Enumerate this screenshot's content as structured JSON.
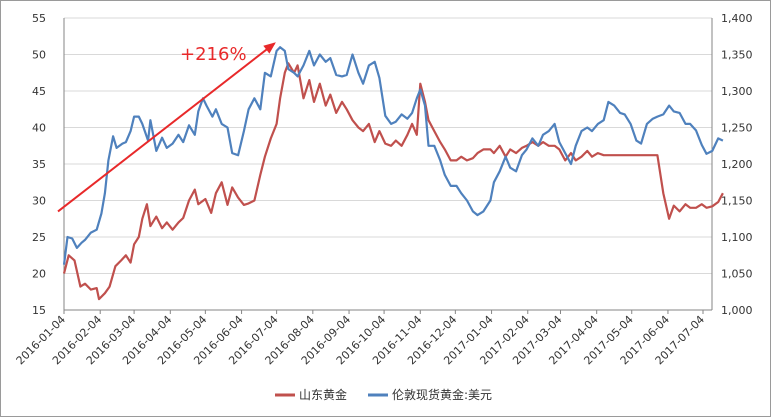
{
  "chart_data": {
    "type": "line",
    "annotation": "+216%",
    "x_tick_labels": [
      "2016-01-04",
      "2016-02-04",
      "2016-03-04",
      "2016-04-04",
      "2016-05-04",
      "2016-06-04",
      "2016-07-04",
      "2016-08-04",
      "2016-09-04",
      "2016-10-04",
      "2016-11-04",
      "2016-12-04",
      "2017-01-04",
      "2017-02-04",
      "2017-03-04",
      "2017-04-04",
      "2017-05-04",
      "2017-06-04",
      "2017-07-04"
    ],
    "y_left": {
      "ticks": [
        "15",
        "20",
        "25",
        "30",
        "35",
        "40",
        "45",
        "50",
        "55"
      ],
      "range": [
        15,
        55
      ]
    },
    "y_right": {
      "ticks": [
        "1,000",
        "1,050",
        "1,100",
        "1,150",
        "1,200",
        "1,250",
        "1,300",
        "1,350",
        "1,400"
      ],
      "range": [
        1000,
        1400
      ]
    },
    "gridlines": true,
    "legend_position": "bottom",
    "series": [
      {
        "name": "山东黄金",
        "axis": "left",
        "color": "#c0504d",
        "points": [
          [
            "2016-01-04",
            20.0
          ],
          [
            "2016-01-08",
            22.5
          ],
          [
            "2016-01-13",
            21.8
          ],
          [
            "2016-01-18",
            18.2
          ],
          [
            "2016-01-22",
            18.6
          ],
          [
            "2016-01-27",
            17.8
          ],
          [
            "2016-02-01",
            18.0
          ],
          [
            "2016-02-03",
            16.5
          ],
          [
            "2016-02-08",
            17.3
          ],
          [
            "2016-02-12",
            18.2
          ],
          [
            "2016-02-17",
            21.0
          ],
          [
            "2016-02-22",
            21.8
          ],
          [
            "2016-02-26",
            22.5
          ],
          [
            "2016-03-01",
            21.5
          ],
          [
            "2016-03-04",
            24.0
          ],
          [
            "2016-03-08",
            25.0
          ],
          [
            "2016-03-11",
            27.5
          ],
          [
            "2016-03-15",
            29.5
          ],
          [
            "2016-03-18",
            26.5
          ],
          [
            "2016-03-23",
            27.8
          ],
          [
            "2016-03-28",
            26.2
          ],
          [
            "2016-04-01",
            27.0
          ],
          [
            "2016-04-06",
            26.0
          ],
          [
            "2016-04-11",
            27.0
          ],
          [
            "2016-04-15",
            27.6
          ],
          [
            "2016-04-20",
            30.0
          ],
          [
            "2016-04-25",
            31.5
          ],
          [
            "2016-04-28",
            29.5
          ],
          [
            "2016-05-04",
            30.2
          ],
          [
            "2016-05-09",
            28.3
          ],
          [
            "2016-05-13",
            31.0
          ],
          [
            "2016-05-18",
            32.5
          ],
          [
            "2016-05-23",
            29.4
          ],
          [
            "2016-05-27",
            31.8
          ],
          [
            "2016-06-01",
            30.4
          ],
          [
            "2016-06-06",
            29.4
          ],
          [
            "2016-06-10",
            29.6
          ],
          [
            "2016-06-15",
            30.0
          ],
          [
            "2016-06-20",
            33.5
          ],
          [
            "2016-06-24",
            36.0
          ],
          [
            "2016-06-29",
            38.5
          ],
          [
            "2016-07-04",
            40.5
          ],
          [
            "2016-07-07",
            44.0
          ],
          [
            "2016-07-11",
            47.5
          ],
          [
            "2016-07-14",
            48.8
          ],
          [
            "2016-07-19",
            47.5
          ],
          [
            "2016-07-22",
            48.5
          ],
          [
            "2016-07-27",
            44.0
          ],
          [
            "2016-08-01",
            46.5
          ],
          [
            "2016-08-05",
            43.5
          ],
          [
            "2016-08-10",
            46.0
          ],
          [
            "2016-08-15",
            43.0
          ],
          [
            "2016-08-19",
            44.5
          ],
          [
            "2016-08-24",
            42.0
          ],
          [
            "2016-08-29",
            43.5
          ],
          [
            "2016-09-02",
            42.5
          ],
          [
            "2016-09-07",
            41.0
          ],
          [
            "2016-09-12",
            40.0
          ],
          [
            "2016-09-16",
            39.5
          ],
          [
            "2016-09-21",
            40.5
          ],
          [
            "2016-09-26",
            38.0
          ],
          [
            "2016-09-30",
            39.5
          ],
          [
            "2016-10-05",
            37.8
          ],
          [
            "2016-10-10",
            37.5
          ],
          [
            "2016-10-14",
            38.2
          ],
          [
            "2016-10-19",
            37.5
          ],
          [
            "2016-10-24",
            39.0
          ],
          [
            "2016-10-28",
            40.5
          ],
          [
            "2016-11-01",
            39.0
          ],
          [
            "2016-11-04",
            46.0
          ],
          [
            "2016-11-08",
            43.5
          ],
          [
            "2016-11-11",
            41.0
          ],
          [
            "2016-11-16",
            39.5
          ],
          [
            "2016-11-21",
            38.0
          ],
          [
            "2016-11-25",
            37.0
          ],
          [
            "2016-11-30",
            35.5
          ],
          [
            "2016-12-05",
            35.5
          ],
          [
            "2016-12-09",
            36.0
          ],
          [
            "2016-12-14",
            35.5
          ],
          [
            "2016-12-19",
            35.8
          ],
          [
            "2016-12-23",
            36.5
          ],
          [
            "2016-12-28",
            37.0
          ],
          [
            "2017-01-03",
            37.0
          ],
          [
            "2017-01-06",
            36.5
          ],
          [
            "2017-01-11",
            37.5
          ],
          [
            "2017-01-16",
            36.0
          ],
          [
            "2017-01-20",
            37.0
          ],
          [
            "2017-01-25",
            36.5
          ],
          [
            "2017-01-30",
            37.2
          ],
          [
            "2017-02-03",
            37.5
          ],
          [
            "2017-02-08",
            38.0
          ],
          [
            "2017-02-13",
            37.5
          ],
          [
            "2017-02-17",
            38.0
          ],
          [
            "2017-02-22",
            37.5
          ],
          [
            "2017-02-27",
            37.5
          ],
          [
            "2017-03-03",
            37.0
          ],
          [
            "2017-03-08",
            35.5
          ],
          [
            "2017-03-13",
            36.5
          ],
          [
            "2017-03-17",
            35.5
          ],
          [
            "2017-03-22",
            36.0
          ],
          [
            "2017-03-27",
            36.8
          ],
          [
            "2017-03-31",
            36.0
          ],
          [
            "2017-04-05",
            36.5
          ],
          [
            "2017-04-10",
            36.2
          ],
          [
            "2017-04-14",
            36.2
          ],
          [
            "2017-04-19",
            36.2
          ],
          [
            "2017-04-24",
            36.2
          ],
          [
            "2017-04-28",
            36.2
          ],
          [
            "2017-05-03",
            36.2
          ],
          [
            "2017-05-08",
            36.2
          ],
          [
            "2017-05-12",
            36.2
          ],
          [
            "2017-05-17",
            36.2
          ],
          [
            "2017-05-22",
            36.2
          ],
          [
            "2017-05-26",
            36.2
          ],
          [
            "2017-05-31",
            31.0
          ],
          [
            "2017-06-05",
            27.5
          ],
          [
            "2017-06-09",
            29.3
          ],
          [
            "2017-06-14",
            28.5
          ],
          [
            "2017-06-19",
            29.5
          ],
          [
            "2017-06-23",
            29.0
          ],
          [
            "2017-06-28",
            29.0
          ],
          [
            "2017-07-03",
            29.5
          ],
          [
            "2017-07-07",
            29.0
          ],
          [
            "2017-07-12",
            29.2
          ],
          [
            "2017-07-17",
            29.8
          ],
          [
            "2017-07-21",
            31.0
          ]
        ]
      },
      {
        "name": "伦敦现货黄金:美元",
        "axis": "right",
        "color": "#4f81bd",
        "points": [
          [
            "2016-01-04",
            1062
          ],
          [
            "2016-01-07",
            1100
          ],
          [
            "2016-01-11",
            1098
          ],
          [
            "2016-01-15",
            1085
          ],
          [
            "2016-01-19",
            1092
          ],
          [
            "2016-01-22",
            1096
          ],
          [
            "2016-01-27",
            1106
          ],
          [
            "2016-02-01",
            1110
          ],
          [
            "2016-02-05",
            1132
          ],
          [
            "2016-02-08",
            1160
          ],
          [
            "2016-02-11",
            1205
          ],
          [
            "2016-02-15",
            1238
          ],
          [
            "2016-02-18",
            1222
          ],
          [
            "2016-02-23",
            1228
          ],
          [
            "2016-02-26",
            1230
          ],
          [
            "2016-03-01",
            1245
          ],
          [
            "2016-03-04",
            1265
          ],
          [
            "2016-03-08",
            1265
          ],
          [
            "2016-03-11",
            1255
          ],
          [
            "2016-03-16",
            1232
          ],
          [
            "2016-03-18",
            1260
          ],
          [
            "2016-03-23",
            1218
          ],
          [
            "2016-03-28",
            1236
          ],
          [
            "2016-04-01",
            1222
          ],
          [
            "2016-04-06",
            1228
          ],
          [
            "2016-04-11",
            1240
          ],
          [
            "2016-04-15",
            1230
          ],
          [
            "2016-04-20",
            1253
          ],
          [
            "2016-04-25",
            1240
          ],
          [
            "2016-04-28",
            1272
          ],
          [
            "2016-05-02",
            1290
          ],
          [
            "2016-05-05",
            1280
          ],
          [
            "2016-05-10",
            1265
          ],
          [
            "2016-05-13",
            1275
          ],
          [
            "2016-05-18",
            1255
          ],
          [
            "2016-05-23",
            1250
          ],
          [
            "2016-05-27",
            1215
          ],
          [
            "2016-06-01",
            1212
          ],
          [
            "2016-06-06",
            1245
          ],
          [
            "2016-06-10",
            1275
          ],
          [
            "2016-06-15",
            1290
          ],
          [
            "2016-06-20",
            1275
          ],
          [
            "2016-06-24",
            1325
          ],
          [
            "2016-06-29",
            1320
          ],
          [
            "2016-07-04",
            1355
          ],
          [
            "2016-07-07",
            1360
          ],
          [
            "2016-07-11",
            1355
          ],
          [
            "2016-07-14",
            1330
          ],
          [
            "2016-07-19",
            1325
          ],
          [
            "2016-07-22",
            1320
          ],
          [
            "2016-07-27",
            1335
          ],
          [
            "2016-08-01",
            1355
          ],
          [
            "2016-08-05",
            1335
          ],
          [
            "2016-08-10",
            1350
          ],
          [
            "2016-08-15",
            1340
          ],
          [
            "2016-08-19",
            1345
          ],
          [
            "2016-08-24",
            1322
          ],
          [
            "2016-08-29",
            1320
          ],
          [
            "2016-09-02",
            1322
          ],
          [
            "2016-09-07",
            1350
          ],
          [
            "2016-09-12",
            1325
          ],
          [
            "2016-09-16",
            1310
          ],
          [
            "2016-09-21",
            1335
          ],
          [
            "2016-09-26",
            1340
          ],
          [
            "2016-09-30",
            1318
          ],
          [
            "2016-10-05",
            1266
          ],
          [
            "2016-10-10",
            1255
          ],
          [
            "2016-10-14",
            1258
          ],
          [
            "2016-10-19",
            1268
          ],
          [
            "2016-10-24",
            1262
          ],
          [
            "2016-10-28",
            1270
          ],
          [
            "2016-11-01",
            1290
          ],
          [
            "2016-11-04",
            1302
          ],
          [
            "2016-11-08",
            1280
          ],
          [
            "2016-11-11",
            1225
          ],
          [
            "2016-11-16",
            1225
          ],
          [
            "2016-11-21",
            1205
          ],
          [
            "2016-11-25",
            1185
          ],
          [
            "2016-11-30",
            1170
          ],
          [
            "2016-12-05",
            1170
          ],
          [
            "2016-12-09",
            1160
          ],
          [
            "2016-12-14",
            1150
          ],
          [
            "2016-12-19",
            1135
          ],
          [
            "2016-12-23",
            1130
          ],
          [
            "2016-12-28",
            1135
          ],
          [
            "2017-01-03",
            1150
          ],
          [
            "2017-01-06",
            1175
          ],
          [
            "2017-01-11",
            1190
          ],
          [
            "2017-01-16",
            1210
          ],
          [
            "2017-01-20",
            1195
          ],
          [
            "2017-01-25",
            1190
          ],
          [
            "2017-01-30",
            1212
          ],
          [
            "2017-02-03",
            1220
          ],
          [
            "2017-02-08",
            1235
          ],
          [
            "2017-02-13",
            1225
          ],
          [
            "2017-02-17",
            1240
          ],
          [
            "2017-02-22",
            1245
          ],
          [
            "2017-02-27",
            1255
          ],
          [
            "2017-03-03",
            1230
          ],
          [
            "2017-03-08",
            1215
          ],
          [
            "2017-03-13",
            1200
          ],
          [
            "2017-03-17",
            1225
          ],
          [
            "2017-03-22",
            1245
          ],
          [
            "2017-03-27",
            1250
          ],
          [
            "2017-03-31",
            1245
          ],
          [
            "2017-04-05",
            1255
          ],
          [
            "2017-04-10",
            1260
          ],
          [
            "2017-04-14",
            1285
          ],
          [
            "2017-04-19",
            1280
          ],
          [
            "2017-04-24",
            1270
          ],
          [
            "2017-04-28",
            1268
          ],
          [
            "2017-05-03",
            1255
          ],
          [
            "2017-05-08",
            1232
          ],
          [
            "2017-05-12",
            1228
          ],
          [
            "2017-05-17",
            1255
          ],
          [
            "2017-05-22",
            1262
          ],
          [
            "2017-05-26",
            1265
          ],
          [
            "2017-05-31",
            1268
          ],
          [
            "2017-06-05",
            1280
          ],
          [
            "2017-06-09",
            1272
          ],
          [
            "2017-06-14",
            1270
          ],
          [
            "2017-06-19",
            1255
          ],
          [
            "2017-06-23",
            1255
          ],
          [
            "2017-06-28",
            1246
          ],
          [
            "2017-07-03",
            1226
          ],
          [
            "2017-07-07",
            1214
          ],
          [
            "2017-07-12",
            1218
          ],
          [
            "2017-07-17",
            1235
          ],
          [
            "2017-07-21",
            1232
          ]
        ]
      }
    ]
  }
}
